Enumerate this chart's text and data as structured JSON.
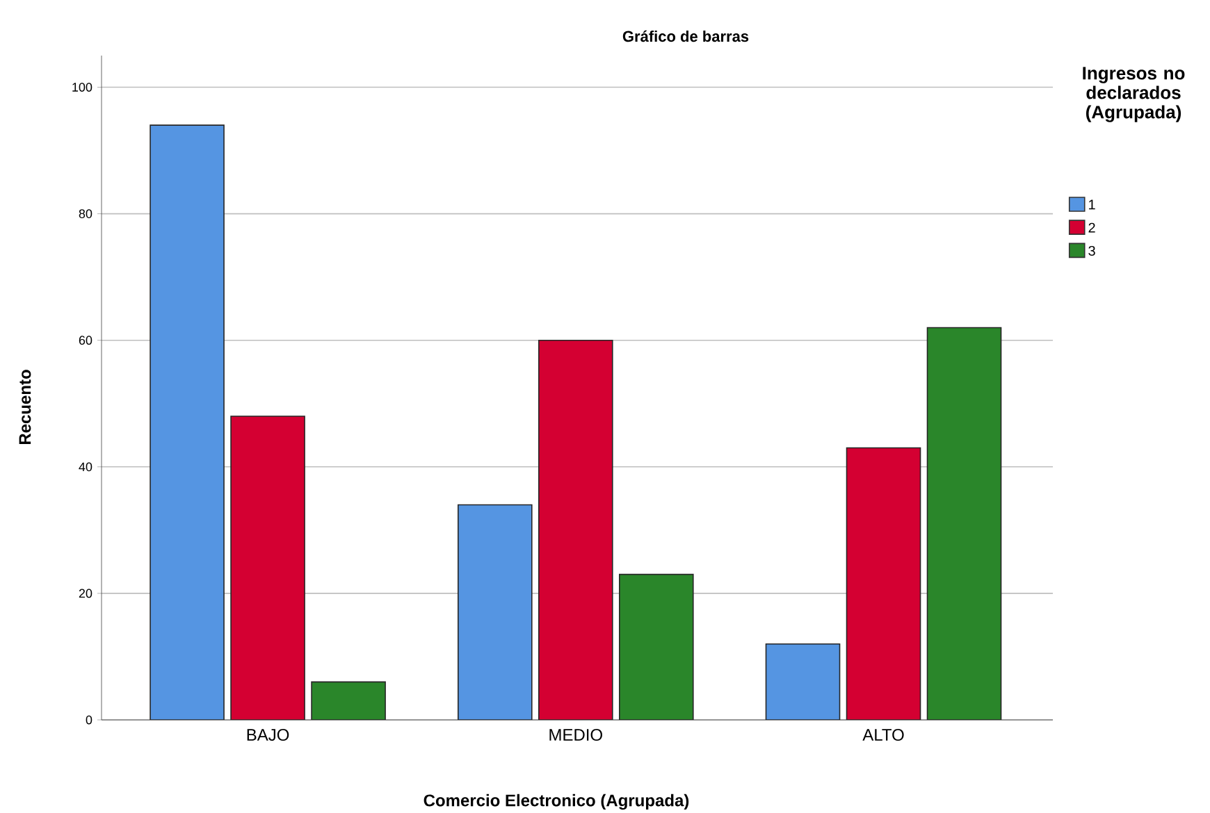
{
  "chart_data": {
    "type": "bar",
    "title": "Gráfico de barras",
    "xlabel": "Comercio Electronico (Agrupada)",
    "ylabel": "Recuento",
    "legend_title": "Ingresos no declarados (Agrupada)",
    "categories": [
      "BAJO",
      "MEDIO",
      "ALTO"
    ],
    "series": [
      {
        "name": "1",
        "color": "#5595e2",
        "values": [
          94,
          34,
          12
        ]
      },
      {
        "name": "2",
        "color": "#d40032",
        "values": [
          48,
          60,
          43
        ]
      },
      {
        "name": "3",
        "color": "#2a862a",
        "values": [
          6,
          23,
          62
        ]
      }
    ],
    "ylim": [
      0,
      105
    ],
    "yticks": [
      0,
      20,
      40,
      60,
      80,
      100
    ],
    "grid": "y",
    "legend": "top right"
  }
}
